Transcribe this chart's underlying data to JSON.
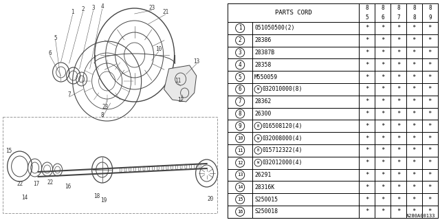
{
  "figure_id": "A280A00133",
  "col_header": "PARTS CORD",
  "year_cols": [
    "85",
    "86",
    "87",
    "88",
    "89"
  ],
  "parts": [
    {
      "num": 1,
      "prefix": "",
      "code": "051050500(2)"
    },
    {
      "num": 2,
      "prefix": "",
      "code": "28386"
    },
    {
      "num": 3,
      "prefix": "",
      "code": "28387B"
    },
    {
      "num": 4,
      "prefix": "",
      "code": "28358"
    },
    {
      "num": 5,
      "prefix": "",
      "code": "M550059"
    },
    {
      "num": 6,
      "prefix": "W",
      "code": "032010000(8)"
    },
    {
      "num": 7,
      "prefix": "",
      "code": "28362"
    },
    {
      "num": 8,
      "prefix": "",
      "code": "26300"
    },
    {
      "num": 9,
      "prefix": "B",
      "code": "016508120(4)"
    },
    {
      "num": 10,
      "prefix": "W",
      "code": "032008000(4)"
    },
    {
      "num": 11,
      "prefix": "B",
      "code": "015712322(4)"
    },
    {
      "num": 12,
      "prefix": "W",
      "code": "032012000(4)"
    },
    {
      "num": 13,
      "prefix": "",
      "code": "26291"
    },
    {
      "num": 14,
      "prefix": "",
      "code": "28316K"
    },
    {
      "num": 15,
      "prefix": "",
      "code": "S250015"
    },
    {
      "num": 16,
      "prefix": "",
      "code": "S250018"
    }
  ],
  "bg_color": "#ffffff",
  "line_color": "#000000",
  "text_color": "#000000"
}
